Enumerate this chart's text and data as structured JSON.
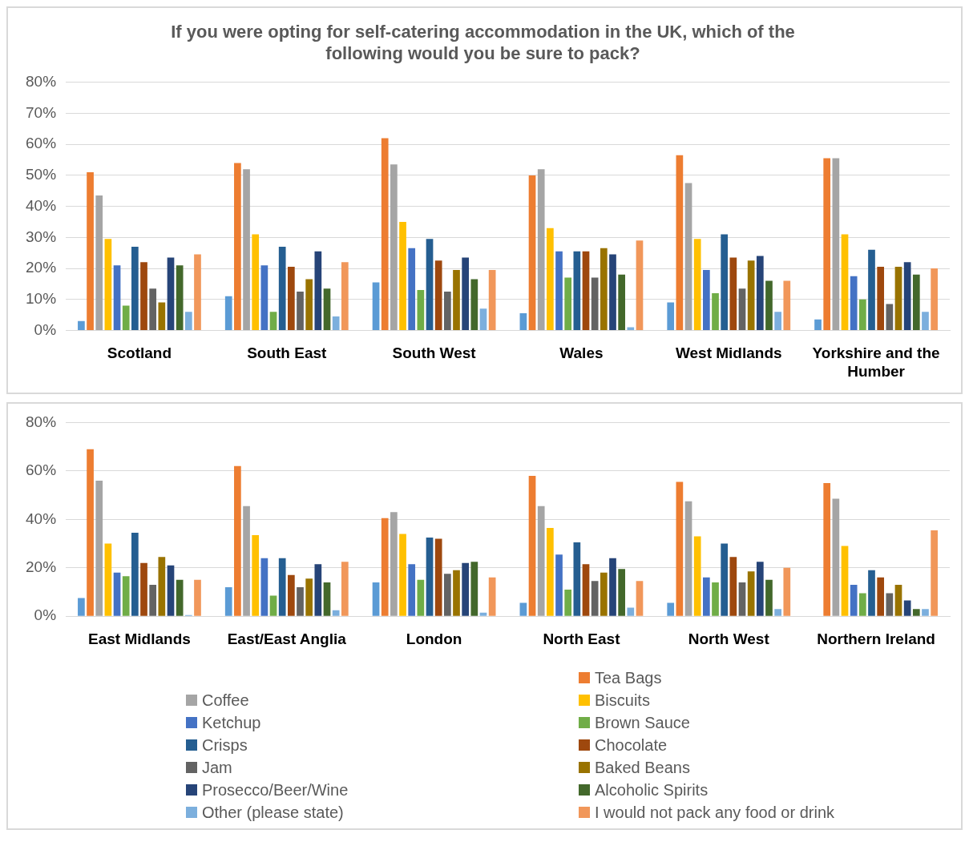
{
  "chart_data": [
    {
      "type": "bar",
      "title": "If you were opting for self-catering accommodation in the UK, which of the following would you be sure to pack?",
      "categories": [
        "Scotland",
        "South East",
        "South West",
        "Wales",
        "West Midlands",
        "Yorkshire and the Humber"
      ],
      "series": [
        {
          "color": "#5b9bd5",
          "values": [
            3,
            11,
            15.5,
            5.5,
            9,
            3.5
          ]
        },
        {
          "color": "#ed7d31",
          "values": [
            51,
            54,
            62,
            50,
            56.5,
            55.5
          ]
        },
        {
          "color": "#a5a5a5",
          "values": [
            43.5,
            52,
            53.5,
            52,
            47.5,
            55.5
          ]
        },
        {
          "color": "#ffc000",
          "values": [
            29.5,
            31,
            35,
            33,
            29.5,
            31
          ]
        },
        {
          "color": "#4472c4",
          "values": [
            21,
            21,
            26.5,
            25.5,
            19.5,
            17.5
          ]
        },
        {
          "color": "#70ad47",
          "values": [
            8,
            6,
            13,
            17,
            12,
            10
          ]
        },
        {
          "color": "#255e91",
          "values": [
            27,
            27,
            29.5,
            25.5,
            31,
            26
          ]
        },
        {
          "color": "#9e480e",
          "values": [
            22,
            20.5,
            22.5,
            25.5,
            23.5,
            20.5
          ]
        },
        {
          "color": "#636363",
          "values": [
            13.5,
            12.5,
            12.5,
            17,
            13.5,
            8.5
          ]
        },
        {
          "color": "#997300",
          "values": [
            9,
            16.5,
            19.5,
            26.5,
            22.5,
            20.5
          ]
        },
        {
          "color": "#264478",
          "values": [
            23.5,
            25.5,
            23.5,
            24.5,
            24,
            22
          ]
        },
        {
          "color": "#43682b",
          "values": [
            21,
            13.5,
            16.5,
            18,
            16,
            18
          ]
        },
        {
          "color": "#7cafdd",
          "values": [
            6,
            4.5,
            7,
            1,
            6,
            6
          ]
        },
        {
          "color": "#f1975a",
          "values": [
            24.5,
            22,
            19.5,
            29,
            16,
            20
          ]
        }
      ],
      "ylim": [
        0,
        80
      ],
      "yticks": [
        {
          "value": 0,
          "label": "0%"
        },
        {
          "value": 10,
          "label": "10%"
        },
        {
          "value": 20,
          "label": "20%"
        },
        {
          "value": 30,
          "label": "30%"
        },
        {
          "value": 40,
          "label": "40%"
        },
        {
          "value": 50,
          "label": "50%"
        },
        {
          "value": 60,
          "label": "60%"
        },
        {
          "value": 70,
          "label": "70%"
        },
        {
          "value": 80,
          "label": "80%"
        }
      ],
      "grid": "y"
    },
    {
      "type": "bar",
      "categories": [
        "East Midlands",
        "East/East Anglia",
        "London",
        "North East",
        "North West",
        "Northern Ireland"
      ],
      "series": [
        {
          "color": "#5b9bd5",
          "values": [
            7.5,
            12,
            14,
            5.5,
            5.5,
            0
          ]
        },
        {
          "name": "Tea Bags",
          "color": "#ed7d31",
          "values": [
            69,
            62,
            40.5,
            58,
            55.5,
            55
          ]
        },
        {
          "name": "Coffee",
          "color": "#a5a5a5",
          "values": [
            56,
            45.5,
            43,
            45.5,
            47.5,
            48.5
          ]
        },
        {
          "name": "Biscuits",
          "color": "#ffc000",
          "values": [
            30,
            33.5,
            34,
            36.5,
            33,
            29
          ]
        },
        {
          "name": "Ketchup",
          "color": "#4472c4",
          "values": [
            18,
            24,
            21.5,
            25.5,
            16,
            13
          ]
        },
        {
          "name": "Brown Sauce",
          "color": "#70ad47",
          "values": [
            16.5,
            8.5,
            15,
            11,
            14,
            9.5
          ]
        },
        {
          "name": "Crisps",
          "color": "#255e91",
          "values": [
            34.5,
            24,
            32.5,
            30.5,
            30,
            19
          ]
        },
        {
          "name": "Chocolate",
          "color": "#9e480e",
          "values": [
            22,
            17,
            32,
            21.5,
            24.5,
            16
          ]
        },
        {
          "name": "Jam",
          "color": "#636363",
          "values": [
            13,
            12,
            17.5,
            14.5,
            14,
            9.5
          ]
        },
        {
          "name": "Baked Beans",
          "color": "#997300",
          "values": [
            24.5,
            15.5,
            19,
            18,
            18.5,
            13
          ]
        },
        {
          "name": "Prosecco/Beer/Wine",
          "color": "#264478",
          "values": [
            21,
            21.5,
            22,
            24,
            22.5,
            6.5
          ]
        },
        {
          "name": "Alcoholic Spirits",
          "color": "#43682b",
          "values": [
            15,
            14,
            22.5,
            19.5,
            15,
            3
          ]
        },
        {
          "name": "Other (please state)",
          "color": "#7cafdd",
          "values": [
            0.5,
            2.5,
            1.5,
            3.5,
            3,
            3
          ]
        },
        {
          "name": "I would not pack any food or drink",
          "color": "#f1975a",
          "values": [
            15,
            22.5,
            16,
            14.5,
            20,
            35.5
          ]
        }
      ],
      "ylim": [
        0,
        80
      ],
      "yticks": [
        {
          "value": 0,
          "label": "0%"
        },
        {
          "value": 20,
          "label": "20%"
        },
        {
          "value": 40,
          "label": "40%"
        },
        {
          "value": 60,
          "label": "60%"
        },
        {
          "value": 80,
          "label": "80%"
        }
      ],
      "grid": "y",
      "legend": "bottom"
    }
  ]
}
